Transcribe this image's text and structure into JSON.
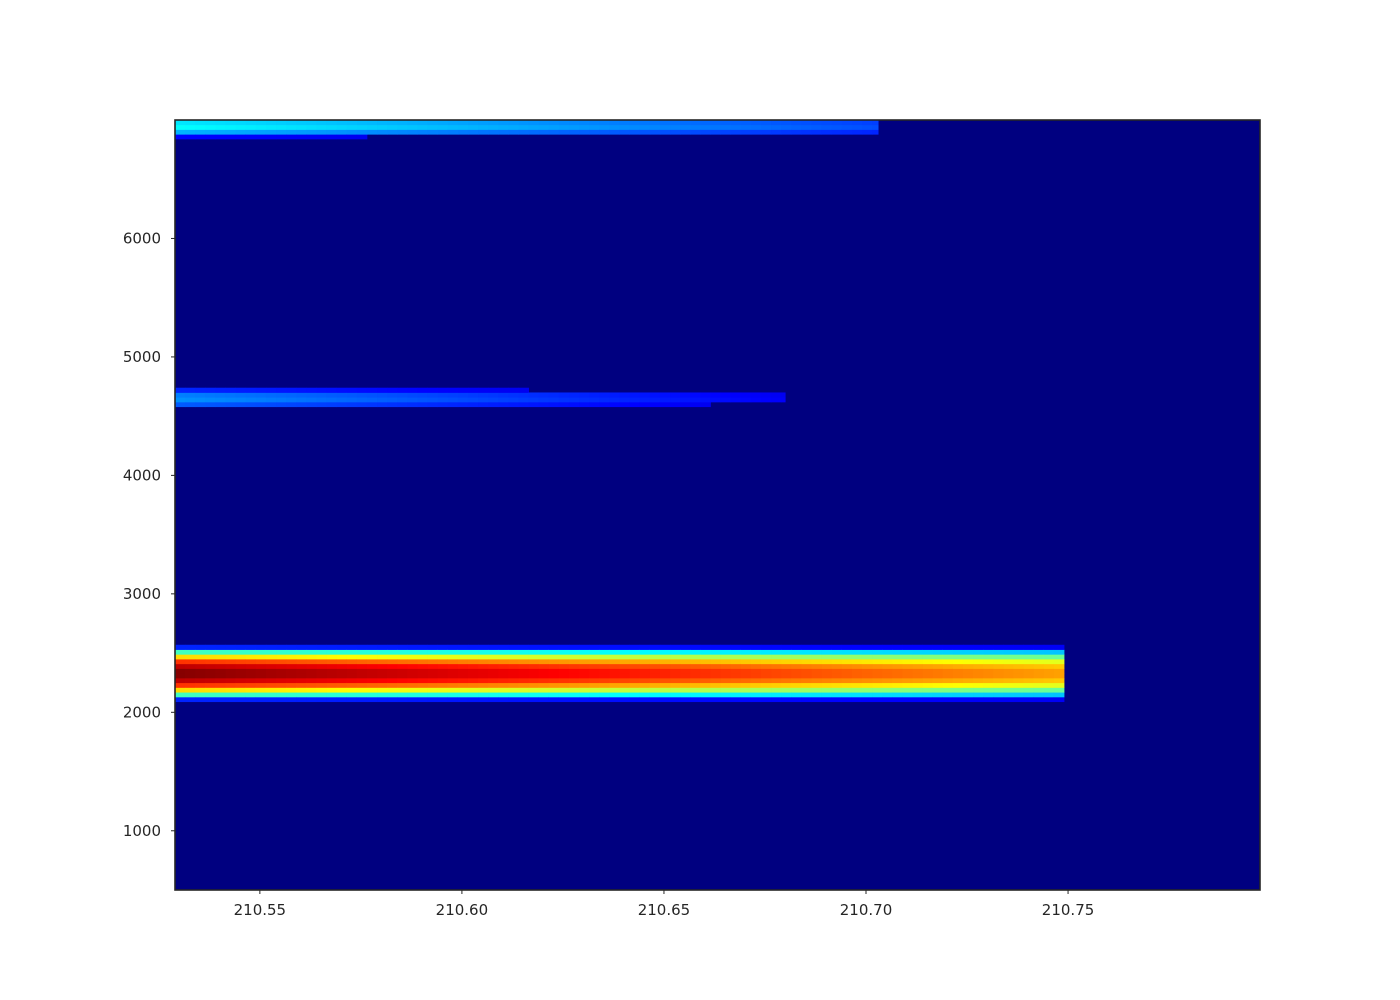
{
  "chart_data": {
    "type": "heatmap",
    "title": "",
    "xlabel": "",
    "ylabel": "",
    "colormap": "jet",
    "background_color": "#000080",
    "xlim": [
      210.529,
      210.7975
    ],
    "ylim": [
      500,
      7000
    ],
    "x_ticks": [
      210.55,
      210.6,
      210.65,
      210.7,
      210.75
    ],
    "x_tick_labels": [
      "210.55",
      "210.60",
      "210.65",
      "210.70",
      "210.75"
    ],
    "y_ticks": [
      1000,
      2000,
      3000,
      4000,
      5000,
      6000
    ],
    "y_tick_labels": [
      "1000",
      "2000",
      "3000",
      "4000",
      "5000",
      "6000"
    ],
    "grid": false,
    "bands": [
      {
        "y_center": 2330,
        "y_halfwidth": 240,
        "x_start": 210.529,
        "x_end": 210.749,
        "peak_intensity_start": 1.0,
        "peak_intensity_end": 0.72
      },
      {
        "y_center": 4650,
        "y_halfwidth": 110,
        "x_start": 210.529,
        "x_end": 210.68,
        "peak_intensity_start": 0.27,
        "peak_intensity_end": 0.12
      },
      {
        "y_center": 6950,
        "y_halfwidth": 110,
        "x_start": 210.529,
        "x_end": 210.703,
        "peak_intensity_start": 0.38,
        "peak_intensity_end": 0.2
      }
    ]
  }
}
